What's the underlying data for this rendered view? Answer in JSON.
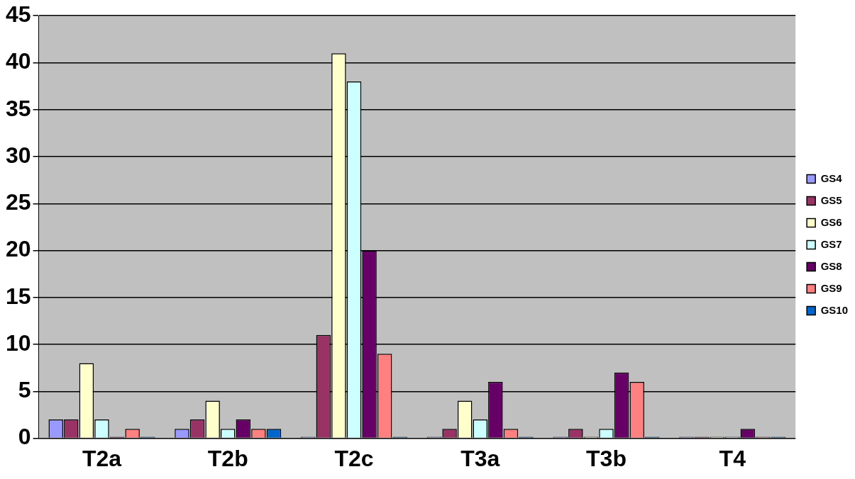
{
  "chart_data": {
    "type": "bar",
    "categories": [
      "T2a",
      "T2b",
      "T2c",
      "T3a",
      "T3b",
      "T4"
    ],
    "series": [
      {
        "name": "GS4",
        "color": "#9999ff",
        "values": [
          2,
          1,
          0,
          0,
          0,
          0
        ]
      },
      {
        "name": "GS5",
        "color": "#993366",
        "values": [
          2,
          2,
          11,
          1,
          1,
          0
        ]
      },
      {
        "name": "GS6",
        "color": "#ffffcc",
        "values": [
          8,
          4,
          41,
          4,
          0,
          0
        ]
      },
      {
        "name": "GS7",
        "color": "#ccffff",
        "values": [
          2,
          1,
          38,
          2,
          1,
          0
        ]
      },
      {
        "name": "GS8",
        "color": "#660066",
        "values": [
          0,
          2,
          20,
          6,
          7,
          1
        ]
      },
      {
        "name": "GS9",
        "color": "#ff8080",
        "values": [
          1,
          1,
          9,
          1,
          6,
          0
        ]
      },
      {
        "name": "GS10",
        "color": "#0066cc",
        "values": [
          0,
          1,
          0,
          0,
          0,
          0
        ]
      }
    ],
    "ylim": [
      0,
      45
    ],
    "yticks": [
      0,
      5,
      10,
      15,
      20,
      25,
      30,
      35,
      40,
      45
    ],
    "grid": "y",
    "legend": "right"
  }
}
